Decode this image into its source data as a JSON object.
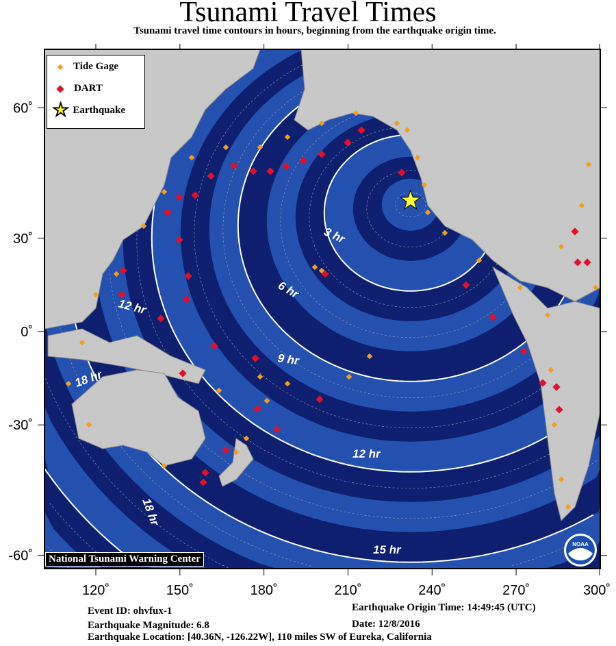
{
  "title": "Tsunami Travel Times",
  "subtitle": "Tsunami travel time contours in hours, beginning from the earthquake origin time.",
  "legend": {
    "tide_gage": "Tide Gage",
    "dart": "DART",
    "earthquake": "Earthquake"
  },
  "colors": {
    "tide_gage": "#f0a020",
    "dart": "#e0102a",
    "earthquake": "#ffff30",
    "ocean_dark": "#0a1550",
    "ocean_light": "#2450b0",
    "land": "#c8c8c8"
  },
  "axes": {
    "lon_ticks": [
      "120˚",
      "150˚",
      "180˚",
      "210˚",
      "240˚",
      "270˚",
      "300˚"
    ],
    "lat_ticks": [
      "60˚",
      "30˚",
      "0˚",
      "-30˚",
      "-60˚"
    ]
  },
  "contours": [
    "3 hr",
    "6 hr",
    "9 hr",
    "12 hr",
    "12 hr",
    "15 hr",
    "18 hr",
    "18 hr"
  ],
  "credit": "National Tsunami Warning Center",
  "logo": "NOAA",
  "event": {
    "id": "Event ID: ohvfux-1",
    "magnitude": "Earthquake Magnitude: 6.8",
    "location": "Earthquake Location: [40.36N, -126.22W], 110 miles SW of Eureka, California",
    "origin_time": "Earthquake Origin Time: 14:49:45 (UTC)",
    "date": "Date: 12/8/2016"
  },
  "epicenter": {
    "lat": 40.36,
    "lon": 233.78
  }
}
